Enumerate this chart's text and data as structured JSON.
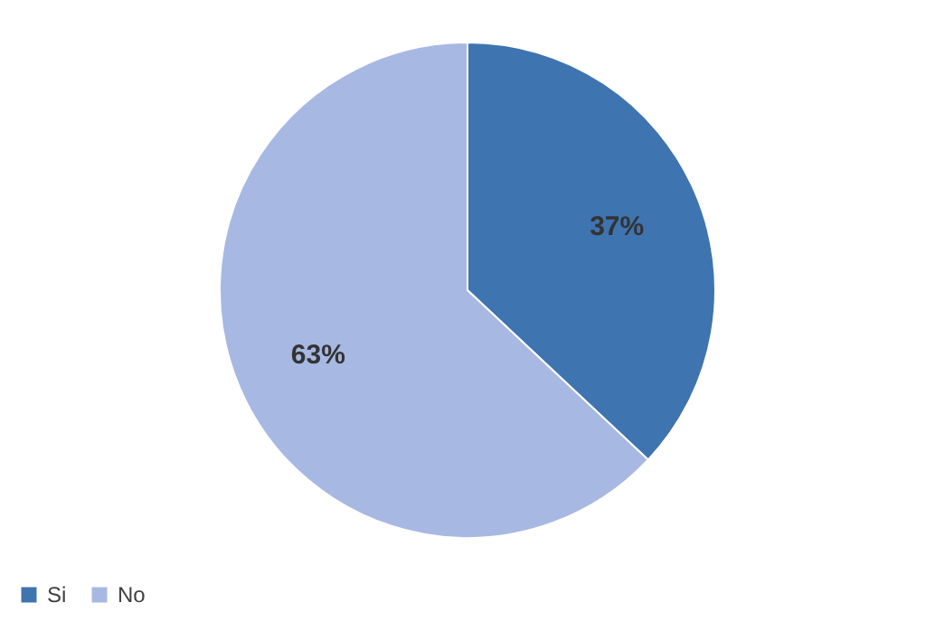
{
  "chart_data": {
    "type": "pie",
    "categories": [
      "Si",
      "No"
    ],
    "values": [
      37,
      63
    ],
    "colors": [
      "#3e74b0",
      "#a7b8e2"
    ],
    "value_labels": [
      "37%",
      "63%"
    ],
    "legend": "bottom"
  }
}
